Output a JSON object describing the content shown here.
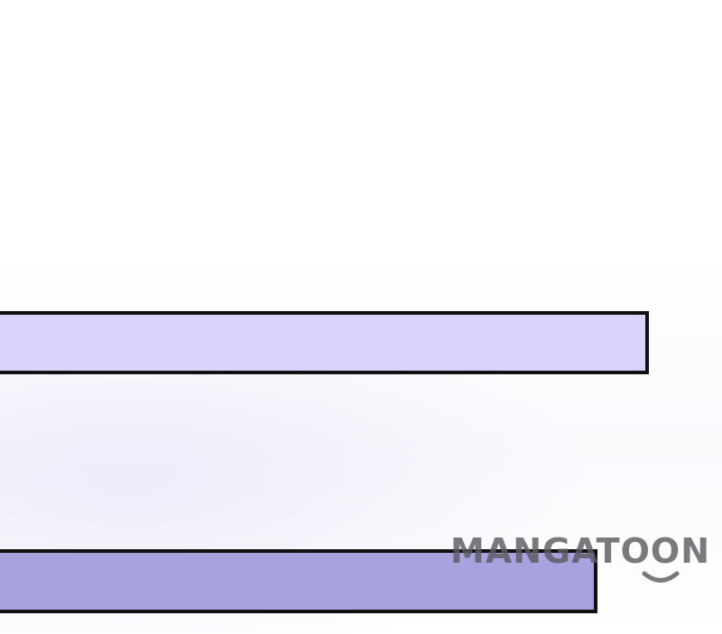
{
  "panel": {
    "background": "#ffffff",
    "bars": [
      {
        "name": "lavender-caption-bar",
        "fill": "#d8d4fa",
        "border": "#111111"
      },
      {
        "name": "periwinkle-caption-bar",
        "fill": "#a8a2df",
        "border": "#111111"
      }
    ]
  },
  "watermark": {
    "text": "MANGATOON",
    "color": "#5c5c62"
  }
}
